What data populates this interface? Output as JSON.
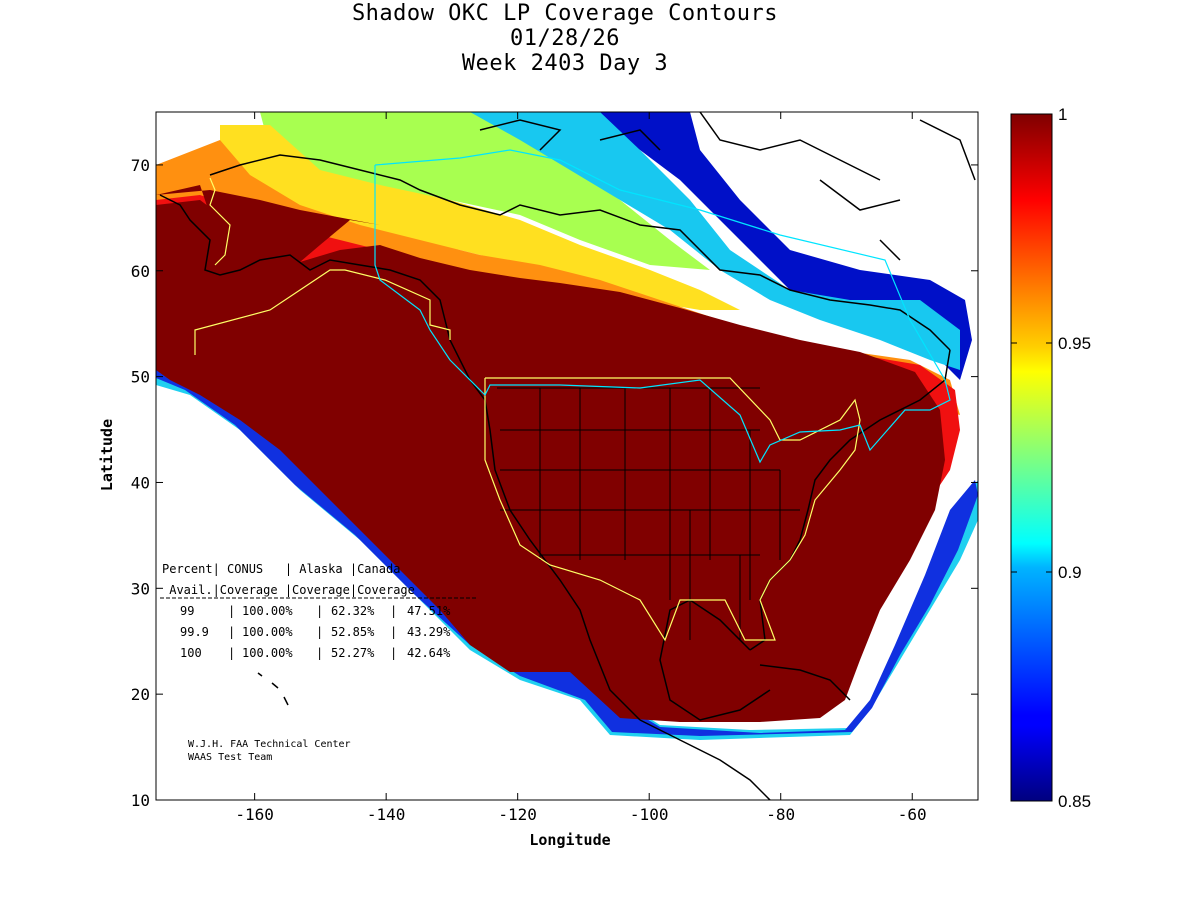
{
  "header": {
    "title": "Shadow OKC LP Coverage Contours",
    "date": "01/28/26",
    "week_day": "Week 2403 Day 3"
  },
  "axes": {
    "xlabel": "Longitude",
    "ylabel": "Latitude",
    "xlim": [
      -175,
      -50
    ],
    "ylim": [
      10,
      75
    ],
    "x_ticks": [
      -160,
      -140,
      -120,
      -100,
      -80,
      -60
    ],
    "y_ticks": [
      10,
      20,
      30,
      40,
      50,
      60,
      70
    ],
    "x_tick_labels": [
      "-160",
      "-140",
      "-120",
      "-100",
      "-80",
      "-60"
    ],
    "y_tick_labels": [
      "10",
      "20",
      "30",
      "40",
      "50",
      "60",
      "70"
    ]
  },
  "colorbar": {
    "min": 0.85,
    "max": 1,
    "tick_labels": [
      "1",
      "0.95",
      "0.9",
      "0.85"
    ],
    "tick_values": [
      1,
      0.95,
      0.9,
      0.85
    ],
    "colormap": "jet"
  },
  "coverage_table": {
    "header_row1": "Percent| CONUS   | Alaska |Canada",
    "header_row2": " Avail.|Coverage |Coverage|Coverage",
    "rows": [
      {
        "percent": "99",
        "conus": "100.00%",
        "alaska": "62.32%",
        "canada": "47.51%"
      },
      {
        "percent": "99.9",
        "conus": "100.00%",
        "alaska": "52.85%",
        "canada": "43.29%"
      },
      {
        "percent": "100",
        "conus": "100.00%",
        "alaska": "52.27%",
        "canada": "42.64%"
      }
    ]
  },
  "credits": {
    "line1": "W.J.H. FAA Technical Center",
    "line2": "WAAS Test Team"
  },
  "colors": {
    "full_coverage": "#800000",
    "service_boundary": "#ffff66",
    "canada_boundary": "#00e5ff",
    "coastline": "#000000"
  }
}
